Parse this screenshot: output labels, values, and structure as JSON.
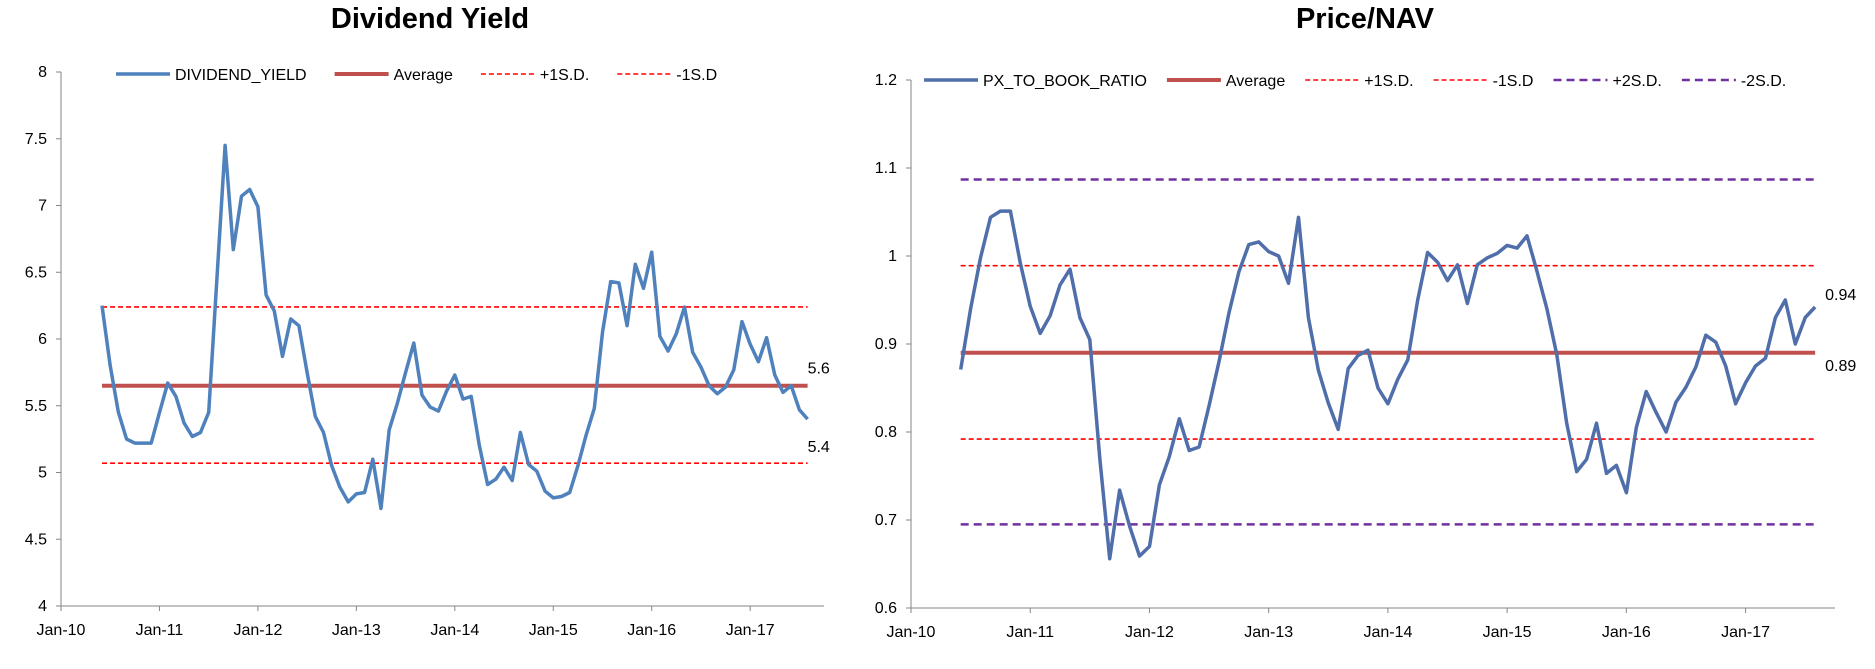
{
  "chart_data": [
    {
      "type": "line",
      "title": "Dividend Yield",
      "xlabel": "",
      "ylabel": "",
      "ylim": [
        4,
        8
      ],
      "yticks": [
        "4",
        "4.5",
        "5",
        "5.5",
        "6",
        "6.5",
        "7",
        "7.5",
        "8"
      ],
      "xlim": [
        "2010-01",
        "2017-10"
      ],
      "xticks": [
        "Jan-10",
        "Jan-11",
        "Jan-12",
        "Jan-13",
        "Jan-14",
        "Jan-15",
        "Jan-16",
        "Jan-17"
      ],
      "legend_position": "top",
      "grid": false,
      "series": [
        {
          "name": "DIVIDEND_YIELD",
          "color": "#4f81bd",
          "style": "solid",
          "x": [
            "2010-06",
            "2010-07",
            "2010-08",
            "2010-09",
            "2010-10",
            "2010-11",
            "2010-12",
            "2011-01",
            "2011-02",
            "2011-03",
            "2011-04",
            "2011-05",
            "2011-06",
            "2011-07",
            "2011-08",
            "2011-09",
            "2011-10",
            "2011-11",
            "2011-12",
            "2012-01",
            "2012-02",
            "2012-03",
            "2012-04",
            "2012-05",
            "2012-06",
            "2012-07",
            "2012-08",
            "2012-09",
            "2012-10",
            "2012-11",
            "2012-12",
            "2013-01",
            "2013-02",
            "2013-03",
            "2013-04",
            "2013-05",
            "2013-06",
            "2013-07",
            "2013-08",
            "2013-09",
            "2013-10",
            "2013-11",
            "2013-12",
            "2014-01",
            "2014-02",
            "2014-03",
            "2014-04",
            "2014-05",
            "2014-06",
            "2014-07",
            "2014-08",
            "2014-09",
            "2014-10",
            "2014-11",
            "2014-12",
            "2015-01",
            "2015-02",
            "2015-03",
            "2015-04",
            "2015-05",
            "2015-06",
            "2015-07",
            "2015-08",
            "2015-09",
            "2015-10",
            "2015-11",
            "2015-12",
            "2016-01",
            "2016-02",
            "2016-03",
            "2016-04",
            "2016-05",
            "2016-06",
            "2016-07",
            "2016-08",
            "2016-09",
            "2016-10",
            "2016-11",
            "2016-12",
            "2017-01",
            "2017-02",
            "2017-03",
            "2017-04",
            "2017-05",
            "2017-06",
            "2017-07",
            "2017-08"
          ],
          "values": [
            6.25,
            5.8,
            5.45,
            5.25,
            5.22,
            5.22,
            5.22,
            5.45,
            5.67,
            5.57,
            5.37,
            5.27,
            5.3,
            5.45,
            6.45,
            7.45,
            6.67,
            7.07,
            7.12,
            6.99,
            6.33,
            6.21,
            5.87,
            6.15,
            6.1,
            5.75,
            5.42,
            5.3,
            5.05,
            4.89,
            4.78,
            4.84,
            4.85,
            5.1,
            4.73,
            5.32,
            5.52,
            5.75,
            5.97,
            5.58,
            5.49,
            5.46,
            5.61,
            5.73,
            5.55,
            5.57,
            5.2,
            4.91,
            4.95,
            5.04,
            4.94,
            5.3,
            5.06,
            5.01,
            4.86,
            4.81,
            4.82,
            4.85,
            5.05,
            5.28,
            5.48,
            6.05,
            6.43,
            6.42,
            6.1,
            6.56,
            6.38,
            6.65,
            6.02,
            5.91,
            6.04,
            6.24,
            5.9,
            5.79,
            5.65,
            5.59,
            5.64,
            5.77,
            6.13,
            5.96,
            5.83,
            6.01,
            5.73,
            5.6,
            5.65,
            5.47,
            5.4
          ]
        },
        {
          "name": "Average",
          "color": "#c0504d",
          "style": "solid",
          "value": 5.65
        },
        {
          "name": "+1S.D.",
          "color": "#ff0000",
          "style": "dashed",
          "value": 6.24
        },
        {
          "name": "-1S.D",
          "color": "#ff0000",
          "style": "dashed",
          "value": 5.07
        }
      ],
      "annotations": [
        "5.6",
        "5.4"
      ]
    },
    {
      "type": "line",
      "title": "Price/NAV",
      "xlabel": "",
      "ylabel": "",
      "ylim": [
        0.6,
        1.2
      ],
      "yticks": [
        "0.6",
        "0.7",
        "0.8",
        "0.9",
        "1",
        "1.1",
        "1.2"
      ],
      "xlim": [
        "2010-01",
        "2017-10"
      ],
      "xticks": [
        "Jan-10",
        "Jan-11",
        "Jan-12",
        "Jan-13",
        "Jan-14",
        "Jan-15",
        "Jan-16",
        "Jan-17"
      ],
      "legend_position": "top",
      "grid": false,
      "series": [
        {
          "name": "PX_TO_BOOK_RATIO",
          "color": "#4f6eaa",
          "style": "solid",
          "x": [
            "2010-06",
            "2010-07",
            "2010-08",
            "2010-09",
            "2010-10",
            "2010-11",
            "2010-12",
            "2011-01",
            "2011-02",
            "2011-03",
            "2011-04",
            "2011-05",
            "2011-06",
            "2011-07",
            "2011-08",
            "2011-09",
            "2011-10",
            "2011-11",
            "2011-12",
            "2012-01",
            "2012-02",
            "2012-03",
            "2012-04",
            "2012-05",
            "2012-06",
            "2012-07",
            "2012-08",
            "2012-09",
            "2012-10",
            "2012-11",
            "2012-12",
            "2013-01",
            "2013-02",
            "2013-03",
            "2013-04",
            "2013-05",
            "2013-06",
            "2013-07",
            "2013-08",
            "2013-09",
            "2013-10",
            "2013-11",
            "2013-12",
            "2014-01",
            "2014-02",
            "2014-03",
            "2014-04",
            "2014-05",
            "2014-06",
            "2014-07",
            "2014-08",
            "2014-09",
            "2014-10",
            "2014-11",
            "2014-12",
            "2015-01",
            "2015-02",
            "2015-03",
            "2015-04",
            "2015-05",
            "2015-06",
            "2015-07",
            "2015-08",
            "2015-09",
            "2015-10",
            "2015-11",
            "2015-12",
            "2016-01",
            "2016-02",
            "2016-03",
            "2016-04",
            "2016-05",
            "2016-06",
            "2016-07",
            "2016-08",
            "2016-09",
            "2016-10",
            "2016-11",
            "2016-12",
            "2017-01",
            "2017-02",
            "2017-03",
            "2017-04",
            "2017-05",
            "2017-06",
            "2017-07",
            "2017-08"
          ],
          "values": [
            0.871,
            0.94,
            0.998,
            1.044,
            1.051,
            1.051,
            0.992,
            0.943,
            0.912,
            0.932,
            0.967,
            0.985,
            0.93,
            0.905,
            0.77,
            0.656,
            0.734,
            0.693,
            0.659,
            0.67,
            0.74,
            0.772,
            0.815,
            0.779,
            0.783,
            0.83,
            0.88,
            0.935,
            0.982,
            1.013,
            1.016,
            1.005,
            1.0,
            0.969,
            1.044,
            0.93,
            0.87,
            0.833,
            0.803,
            0.872,
            0.887,
            0.893,
            0.85,
            0.832,
            0.86,
            0.882,
            0.95,
            1.004,
            0.993,
            0.972,
            0.99,
            0.946,
            0.99,
            0.998,
            1.003,
            1.012,
            1.009,
            1.023,
            0.983,
            0.94,
            0.888,
            0.81,
            0.755,
            0.769,
            0.81,
            0.753,
            0.762,
            0.731,
            0.805,
            0.846,
            0.822,
            0.8,
            0.834,
            0.851,
            0.874,
            0.91,
            0.902,
            0.875,
            0.832,
            0.856,
            0.875,
            0.884,
            0.93,
            0.95,
            0.9,
            0.93,
            0.942
          ]
        },
        {
          "name": "Average",
          "color": "#c0504d",
          "style": "solid",
          "value": 0.89
        },
        {
          "name": "+1S.D.",
          "color": "#ff0000",
          "style": "dashed",
          "value": 0.989
        },
        {
          "name": "-1S.D",
          "color": "#ff0000",
          "style": "dashed",
          "value": 0.792
        },
        {
          "name": "+2S.D.",
          "color": "#7030a0",
          "style": "dashed",
          "value": 1.087
        },
        {
          "name": "-2S.D.",
          "color": "#7030a0",
          "style": "dashed",
          "value": 0.695
        }
      ],
      "annotations": [
        "0.94",
        "0.89"
      ]
    }
  ]
}
